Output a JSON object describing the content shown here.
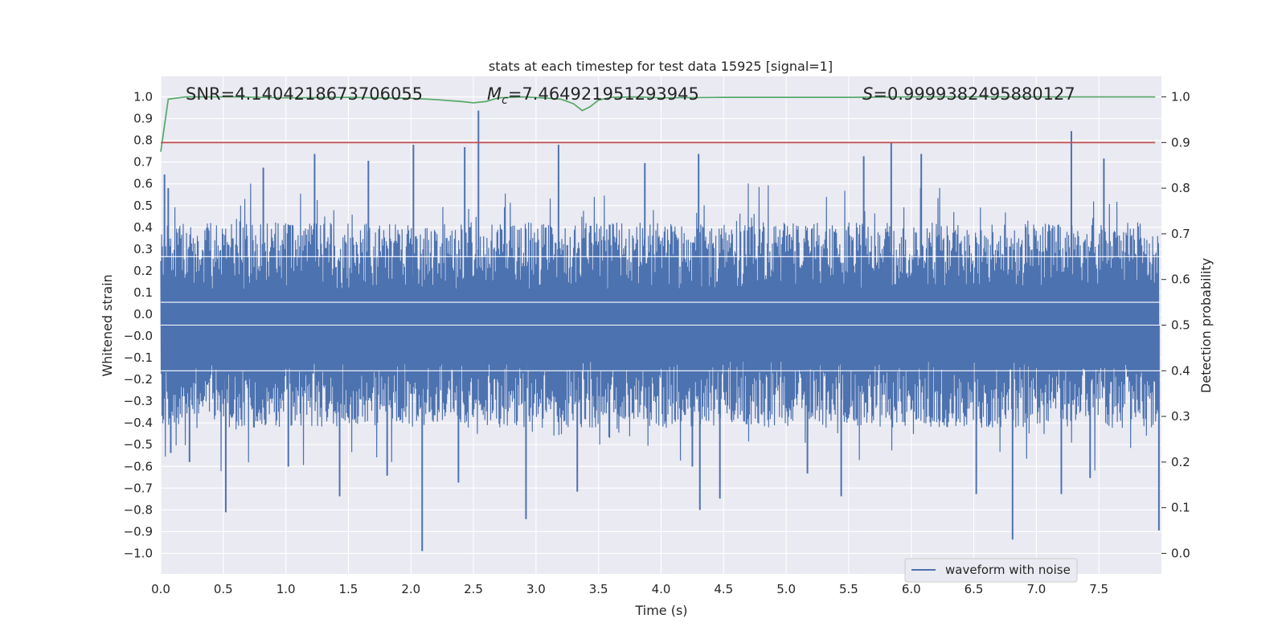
{
  "chart_data": {
    "type": "line",
    "title": "stats at each timestep for test data 15925 [signal=1]",
    "xlabel": "Time (s)",
    "ylabel": "Whitened strain",
    "y2label": "Detection probability",
    "xlim": [
      0.0,
      8.0
    ],
    "ylim": [
      -1.09,
      1.09
    ],
    "y2lim": [
      -0.045,
      1.045
    ],
    "x_ticks": [
      "0.0",
      "0.5",
      "1.0",
      "1.5",
      "2.0",
      "2.5",
      "3.0",
      "3.5",
      "4.0",
      "4.5",
      "5.0",
      "5.5",
      "6.0",
      "6.5",
      "7.0",
      "7.5"
    ],
    "y_ticks": [
      "1.0",
      "0.9",
      "0.8",
      "0.7",
      "0.6",
      "0.5",
      "0.4",
      "0.3",
      "0.2",
      "0.1",
      "0.0",
      "−0.0",
      "−0.1",
      "−0.2",
      "−0.3",
      "−0.4",
      "−0.5",
      "−0.6",
      "−0.7",
      "−0.8",
      "−0.9",
      "−1.0"
    ],
    "y2_ticks": [
      "0.0",
      "0.1",
      "0.2",
      "0.3",
      "0.4",
      "0.5",
      "0.6",
      "0.7",
      "0.8",
      "0.9",
      "1.0"
    ],
    "annotations": {
      "snr": "SNR=4.1404218673706055",
      "mc_symbol": "M",
      "mc_sub": "c",
      "mc_value": "=7.464921951293945",
      "s_symbol": "S",
      "s_value": "=0.9999382495880127"
    },
    "grid": true,
    "legend_position": "lower-right",
    "series": [
      {
        "name": "waveform with noise",
        "color": "#4c72b0",
        "axis": "left",
        "kind": "noisy strain, dense",
        "envelope": 0.45,
        "spikes": [
          {
            "x": 0.03,
            "y": 0.66
          },
          {
            "x": 0.06,
            "y": 0.6
          },
          {
            "x": 0.08,
            "y": -0.56
          },
          {
            "x": 0.23,
            "y": -0.6
          },
          {
            "x": 0.52,
            "y": -0.82
          },
          {
            "x": 0.82,
            "y": 0.69
          },
          {
            "x": 1.02,
            "y": -0.62
          },
          {
            "x": 1.23,
            "y": 0.75
          },
          {
            "x": 1.43,
            "y": -0.75
          },
          {
            "x": 1.66,
            "y": 0.72
          },
          {
            "x": 1.81,
            "y": -0.66
          },
          {
            "x": 2.02,
            "y": 0.79
          },
          {
            "x": 2.09,
            "y": -0.99
          },
          {
            "x": 2.38,
            "y": -0.69
          },
          {
            "x": 2.43,
            "y": 0.78
          },
          {
            "x": 2.54,
            "y": 0.94
          },
          {
            "x": 2.92,
            "y": -0.85
          },
          {
            "x": 3.18,
            "y": 0.79
          },
          {
            "x": 3.33,
            "y": -0.73
          },
          {
            "x": 3.87,
            "y": 0.71
          },
          {
            "x": 4.25,
            "y": -0.62
          },
          {
            "x": 4.3,
            "y": 0.75
          },
          {
            "x": 4.31,
            "y": -0.81
          },
          {
            "x": 4.47,
            "y": -0.76
          },
          {
            "x": 5.17,
            "y": -0.65
          },
          {
            "x": 5.44,
            "y": -0.75
          },
          {
            "x": 5.62,
            "y": 0.74
          },
          {
            "x": 5.84,
            "y": 0.8
          },
          {
            "x": 6.08,
            "y": 0.75
          },
          {
            "x": 6.52,
            "y": -0.74
          },
          {
            "x": 6.81,
            "y": -0.94
          },
          {
            "x": 7.2,
            "y": -0.74
          },
          {
            "x": 7.28,
            "y": 0.85
          },
          {
            "x": 7.43,
            "y": -0.67
          },
          {
            "x": 7.54,
            "y": 0.73
          },
          {
            "x": 7.98,
            "y": -0.9
          }
        ]
      },
      {
        "name": "",
        "color": "#55a868",
        "axis": "right",
        "x": [
          0.0,
          0.06,
          0.2,
          0.6,
          1.0,
          1.5,
          2.0,
          2.2,
          2.4,
          2.5,
          2.6,
          2.7,
          2.9,
          3.1,
          3.2,
          3.3,
          3.37,
          3.43,
          3.5,
          3.6,
          3.8,
          4.0,
          4.5,
          5.0,
          5.5,
          6.0,
          6.5,
          7.0,
          7.5,
          7.95
        ],
        "values": [
          0.88,
          0.995,
          1.0,
          1.0,
          0.998,
          0.999,
          0.997,
          0.994,
          0.99,
          0.987,
          0.99,
          0.998,
          1.0,
          0.997,
          0.995,
          0.985,
          0.97,
          0.978,
          0.993,
          0.999,
          1.0,
          0.998,
          0.999,
          0.999,
          0.999,
          1.0,
          1.0,
          1.0,
          1.0,
          1.0
        ]
      },
      {
        "name": "",
        "color": "#c44e52",
        "axis": "right",
        "kind": "threshold",
        "x": [
          0.0,
          7.95
        ],
        "values": [
          0.9,
          0.9
        ]
      }
    ]
  }
}
